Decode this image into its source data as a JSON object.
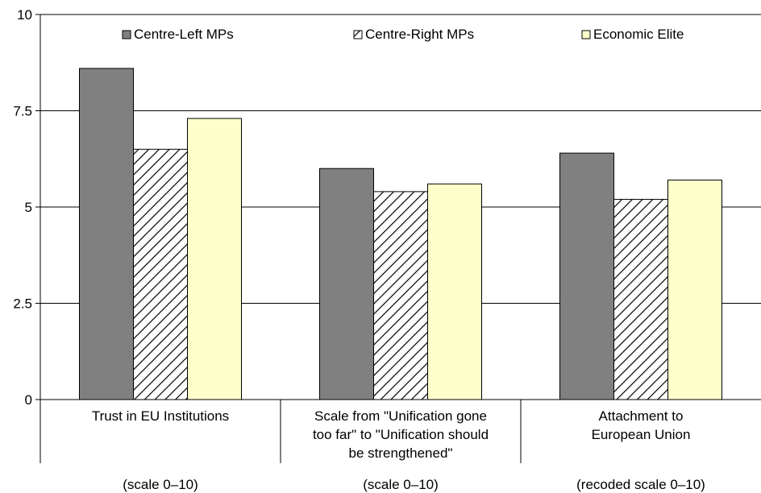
{
  "chart_data": {
    "type": "bar",
    "ylim": [
      0,
      10
    ],
    "yticks": [
      0,
      2.5,
      5,
      7.5,
      10
    ],
    "ytick_labels": [
      "0",
      "2.5",
      "5",
      "7.5",
      "10"
    ],
    "grid": true,
    "legend_position": "top",
    "categories": [
      {
        "lines": [
          "Trust in EU Institutions"
        ],
        "scale_note": "(scale 0–10)"
      },
      {
        "lines": [
          "Scale from \"Unification gone",
          "too far\" to \"Unification should",
          "be strengthened\""
        ],
        "scale_note": "(scale 0–10)"
      },
      {
        "lines": [
          "Attachment to",
          "European Union"
        ],
        "scale_note": "(recoded scale 0–10)"
      }
    ],
    "series": [
      {
        "name": "Centre-Left MPs",
        "values": [
          8.6,
          6.0,
          6.4
        ],
        "color": "#808080",
        "pattern": "solid"
      },
      {
        "name": "Centre-Right MPs",
        "values": [
          6.5,
          5.4,
          5.2
        ],
        "color": "#ffffff",
        "pattern": "diagonal-hatch"
      },
      {
        "name": "Economic Elite",
        "values": [
          7.3,
          5.6,
          5.7
        ],
        "color": "#ffffcc",
        "pattern": "solid"
      }
    ]
  }
}
